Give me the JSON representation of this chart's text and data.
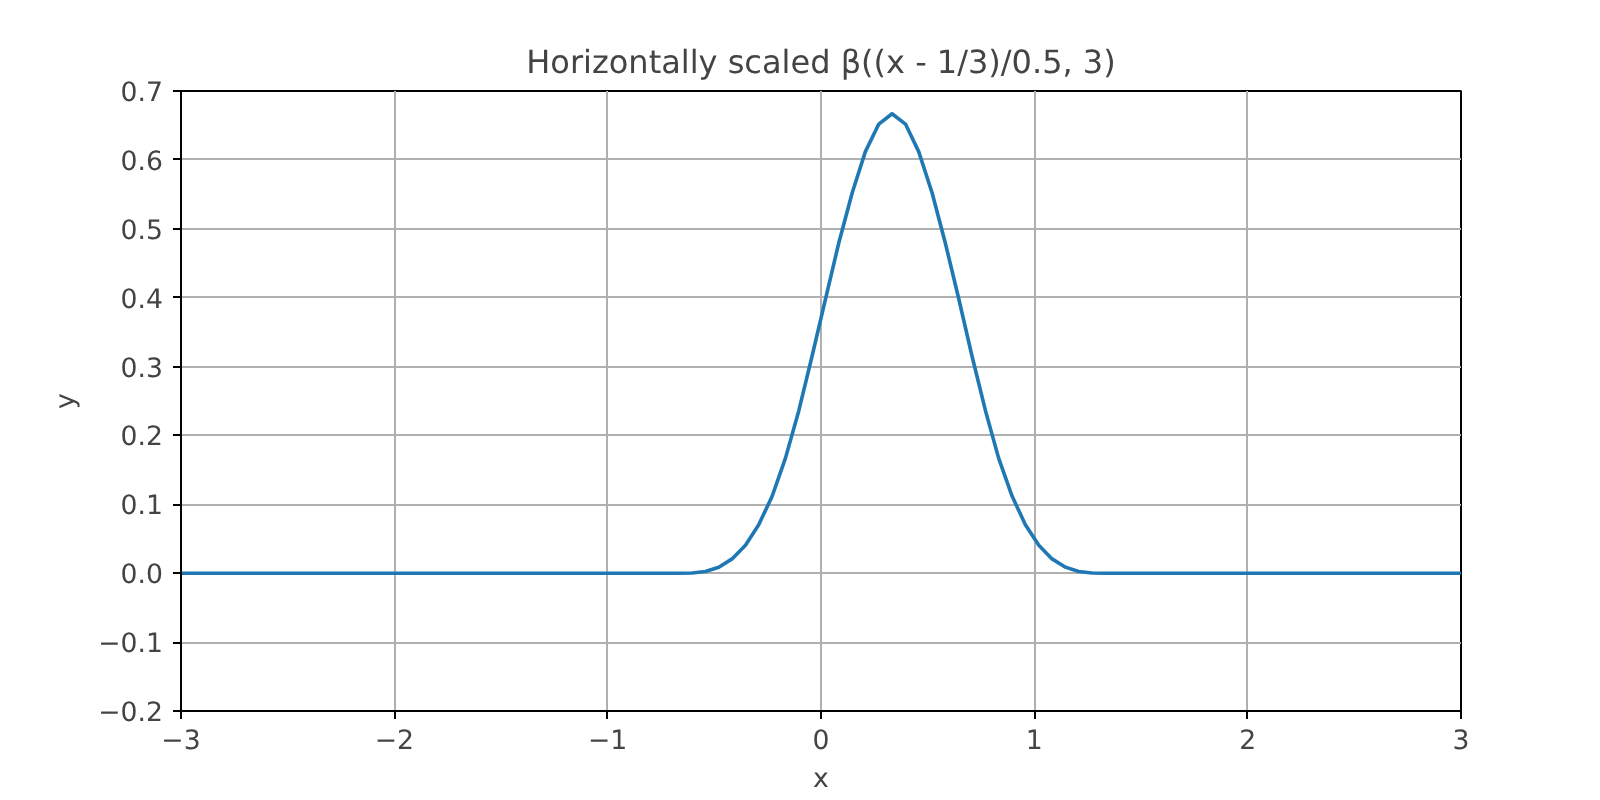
{
  "chart_data": {
    "type": "line",
    "title": "Horizontally scaled β((x - 1/3)/0.5, 3)",
    "xlabel": "x",
    "ylabel": "y",
    "series": [
      {
        "color": "#1f77b4",
        "x": [
          -3,
          -0.667,
          -0.604,
          -0.542,
          -0.479,
          -0.417,
          -0.354,
          -0.292,
          -0.229,
          -0.167,
          -0.104,
          -0.042,
          0.021,
          0.083,
          0.146,
          0.208,
          0.271,
          0.333,
          0.396,
          0.458,
          0.521,
          0.583,
          0.646,
          0.708,
          0.771,
          0.833,
          0.896,
          0.958,
          1.021,
          1.083,
          1.146,
          1.208,
          1.271,
          1.333,
          3
        ],
        "values": [
          0,
          0,
          0.0003,
          0.0026,
          0.0088,
          0.0208,
          0.0407,
          0.0703,
          0.1117,
          0.1667,
          0.236,
          0.315,
          0.398,
          0.479,
          0.552,
          0.612,
          0.652,
          0.667,
          0.652,
          0.612,
          0.552,
          0.479,
          0.398,
          0.315,
          0.236,
          0.1667,
          0.1117,
          0.0703,
          0.0407,
          0.0208,
          0.0088,
          0.0026,
          0.0003,
          0,
          0
        ]
      }
    ],
    "xlim": [
      -3,
      3
    ],
    "ylim": [
      -0.2,
      0.7
    ],
    "xticks": [
      {
        "value": -3,
        "label": "−3"
      },
      {
        "value": -2,
        "label": "−2"
      },
      {
        "value": -1,
        "label": "−1"
      },
      0,
      1,
      2,
      3
    ],
    "yticks": [
      {
        "value": -0.2,
        "label": "−0.2"
      },
      {
        "value": -0.1,
        "label": "−0.1"
      },
      {
        "value": 0,
        "label": "0.0"
      },
      0.1,
      0.2,
      0.3,
      0.4,
      0.5,
      0.6,
      0.7
    ],
    "grid": true,
    "line_style": "solid"
  }
}
